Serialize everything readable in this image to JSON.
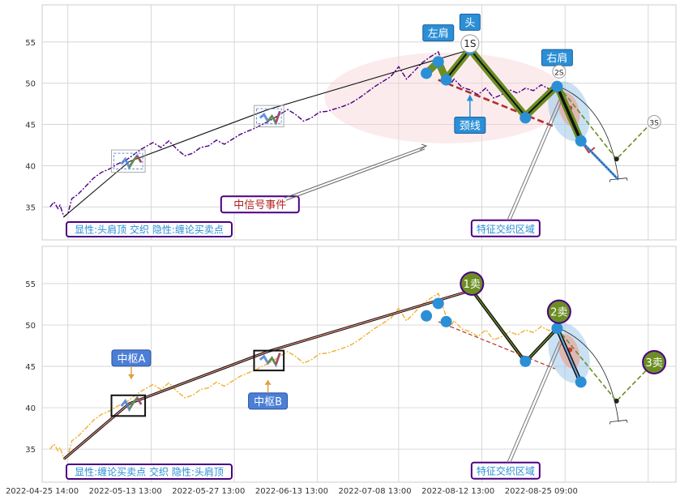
{
  "chart_data": [
    {
      "type": "line",
      "panel": "top",
      "ylim": [
        31,
        59.5
      ],
      "yticks": [
        35,
        40,
        45,
        50,
        55
      ],
      "grid": true,
      "caption": "显性:头肩顶 交织 隐性:缠论买卖点",
      "series": [
        {
          "kind": "price",
          "color": "#4b0082",
          "style": "dashdot",
          "points": [
            [
              0,
              35
            ],
            [
              2,
              35.6
            ],
            [
              4,
              34.8
            ],
            [
              5,
              35.2
            ],
            [
              7,
              33.8
            ],
            [
              9,
              34.2
            ],
            [
              11,
              36
            ],
            [
              14,
              36.5
            ],
            [
              18,
              37.5
            ],
            [
              22,
              38.5
            ],
            [
              26,
              39.2
            ],
            [
              30,
              39.6
            ],
            [
              34,
              40.2
            ],
            [
              38,
              40.6
            ],
            [
              42,
              41.3
            ],
            [
              46,
              42
            ],
            [
              52,
              42.8
            ],
            [
              56,
              42.2
            ],
            [
              60,
              43
            ],
            [
              64,
              42
            ],
            [
              68,
              41.2
            ],
            [
              72,
              41.5
            ],
            [
              76,
              42.2
            ],
            [
              80,
              42.4
            ],
            [
              84,
              43.1
            ],
            [
              88,
              42.6
            ],
            [
              92,
              43.2
            ],
            [
              96,
              43.8
            ],
            [
              100,
              44.2
            ],
            [
              104,
              44.6
            ],
            [
              108,
              45.1
            ],
            [
              112,
              45.6
            ],
            [
              116,
              46.2
            ],
            [
              120,
              46.8
            ],
            [
              124,
              46.2
            ],
            [
              128,
              45.4
            ],
            [
              132,
              45.8
            ],
            [
              136,
              46.5
            ],
            [
              140,
              46.6
            ],
            [
              144,
              46.9
            ],
            [
              148,
              47.2
            ],
            [
              152,
              47.6
            ],
            [
              156,
              48.2
            ],
            [
              160,
              48.9
            ],
            [
              164,
              49.6
            ],
            [
              168,
              50.2
            ],
            [
              172,
              50.8
            ],
            [
              176,
              52
            ],
            [
              180,
              50.5
            ],
            [
              184,
              51.5
            ],
            [
              188,
              52.5
            ],
            [
              192,
              53.2
            ],
            [
              196,
              53.8
            ],
            [
              198,
              52.5
            ],
            [
              200,
              51
            ],
            [
              202,
              49.8
            ],
            [
              204,
              50.5
            ],
            [
              208,
              49.5
            ],
            [
              212,
              49.2
            ],
            [
              216,
              48.6
            ],
            [
              220,
              49.4
            ],
            [
              224,
              48.2
            ],
            [
              228,
              48.6
            ],
            [
              232,
              49.2
            ],
            [
              236,
              48.8
            ],
            [
              240,
              49.4
            ],
            [
              244,
              49.1
            ],
            [
              248,
              49.8
            ],
            [
              252,
              49.3
            ],
            [
              256,
              49.8
            ]
          ]
        },
        {
          "kind": "bi",
          "color": "#6b8e23",
          "points": [
            [
              190,
              51.2
            ],
            [
              196,
              52.6
            ],
            [
              200,
              50.5
            ],
            [
              212,
              54.1
            ],
            [
              240,
              46
            ],
            [
              256,
              49.7
            ],
            [
              268,
              43
            ],
            [
              275,
              41.8
            ]
          ]
        },
        {
          "kind": "trend",
          "color": "#111111",
          "points": [
            [
              7,
              33.8
            ],
            [
              40,
              40.5
            ],
            [
              110,
              46.8
            ],
            [
              214,
              54.2
            ],
            [
              248,
              46.2
            ],
            [
              257,
              49.6
            ]
          ]
        },
        {
          "kind": "neckline",
          "color": "#b03030",
          "points": [
            [
              196,
              50.4
            ],
            [
              255,
              44.7
            ]
          ]
        },
        {
          "kind": "forecast",
          "color": "#6b8e23",
          "points": [
            [
              257,
              49.6
            ],
            [
              286,
              40.8
            ],
            [
              304,
              45.3
            ]
          ]
        },
        {
          "kind": "forecast-down",
          "color": "#4a90d9",
          "points": [
            [
              268,
              43
            ],
            [
              287,
              38.3
            ]
          ]
        }
      ],
      "markers": [
        {
          "x": 190,
          "y": 51.2
        },
        {
          "x": 196,
          "y": 52.6
        },
        {
          "x": 200,
          "y": 50.4
        },
        {
          "x": 212,
          "y": 54.1
        },
        {
          "x": 240,
          "y": 45.8
        },
        {
          "x": 256,
          "y": 49.6
        },
        {
          "x": 268,
          "y": 43
        }
      ],
      "labels": [
        {
          "key": "left_shoulder",
          "text": "左肩",
          "x": 196,
          "y": 56.1
        },
        {
          "key": "head",
          "text": "头",
          "x": 212,
          "y": 57.4
        },
        {
          "key": "right_shoulder",
          "text": "右肩",
          "x": 256,
          "y": 53.1
        },
        {
          "key": "neckline",
          "text": "颈线",
          "x": 212,
          "y": 44.9
        },
        {
          "key": "signal_event",
          "text": "中信号事件",
          "x": 106,
          "y": 35.3
        },
        {
          "key": "feature_zone",
          "text": "特征交织区域",
          "x": 230,
          "y": 32.4
        }
      ],
      "point_tags": [
        {
          "text": "1S",
          "x": 212,
          "y": 54.8
        },
        {
          "text": "2S",
          "x": 257,
          "y": 51.4
        },
        {
          "text": "3S",
          "x": 305,
          "y": 45.3
        }
      ]
    },
    {
      "type": "line",
      "panel": "bottom",
      "ylim": [
        31,
        59.5
      ],
      "yticks": [
        35,
        40,
        45,
        50,
        55
      ],
      "grid": true,
      "caption": "显性:缠论买卖点 交织 隐性:头肩顶",
      "series": [
        {
          "kind": "price",
          "color": "#f0b030",
          "style": "dashdot",
          "points": [
            [
              0,
              35
            ],
            [
              2,
              35.6
            ],
            [
              4,
              34.8
            ],
            [
              5,
              35.2
            ],
            [
              7,
              33.8
            ],
            [
              9,
              34.2
            ],
            [
              11,
              36
            ],
            [
              14,
              36.5
            ],
            [
              18,
              37.5
            ],
            [
              22,
              38.5
            ],
            [
              26,
              39.2
            ],
            [
              30,
              39.6
            ],
            [
              34,
              40.2
            ],
            [
              38,
              40.6
            ],
            [
              42,
              41.3
            ],
            [
              46,
              42
            ],
            [
              52,
              42.8
            ],
            [
              56,
              42.2
            ],
            [
              60,
              43
            ],
            [
              64,
              42
            ],
            [
              68,
              41.2
            ],
            [
              72,
              41.5
            ],
            [
              76,
              42.2
            ],
            [
              80,
              42.4
            ],
            [
              84,
              43.1
            ],
            [
              88,
              42.6
            ],
            [
              92,
              43.2
            ],
            [
              96,
              43.8
            ],
            [
              100,
              44.2
            ],
            [
              104,
              44.6
            ],
            [
              108,
              45.1
            ],
            [
              112,
              45.6
            ],
            [
              116,
              46.2
            ],
            [
              120,
              46.8
            ],
            [
              124,
              46.2
            ],
            [
              128,
              45.4
            ],
            [
              132,
              45.8
            ],
            [
              136,
              46.5
            ],
            [
              140,
              46.6
            ],
            [
              144,
              46.9
            ],
            [
              148,
              47.2
            ],
            [
              152,
              47.6
            ],
            [
              156,
              48.2
            ],
            [
              160,
              48.9
            ],
            [
              164,
              49.6
            ],
            [
              168,
              50.2
            ],
            [
              172,
              50.8
            ],
            [
              176,
              52
            ],
            [
              180,
              50.5
            ],
            [
              184,
              51.5
            ],
            [
              188,
              52.5
            ],
            [
              192,
              53.2
            ],
            [
              196,
              53.8
            ],
            [
              198,
              52.5
            ],
            [
              200,
              51
            ],
            [
              202,
              49.8
            ],
            [
              204,
              50.5
            ],
            [
              208,
              49.5
            ],
            [
              212,
              49.2
            ],
            [
              216,
              48.6
            ],
            [
              220,
              49.4
            ],
            [
              224,
              48.2
            ],
            [
              228,
              48.6
            ],
            [
              232,
              49.2
            ],
            [
              236,
              48.8
            ],
            [
              240,
              49.4
            ],
            [
              244,
              49.1
            ],
            [
              248,
              49.8
            ],
            [
              252,
              49.3
            ],
            [
              256,
              49.8
            ]
          ]
        },
        {
          "kind": "trend",
          "color": "#111111",
          "points": [
            [
              7,
              33.8
            ],
            [
              40,
              40.5
            ],
            [
              110,
              46.8
            ],
            [
              213,
              54.2
            ],
            [
              240,
              45.5
            ],
            [
              256,
              49.6
            ]
          ]
        },
        {
          "kind": "neckline",
          "color": "#b03030",
          "points": [
            [
              196,
              50.4
            ],
            [
              255,
              44.7
            ]
          ]
        },
        {
          "kind": "bi",
          "color": "#111111",
          "points": [
            [
              256,
              49.6
            ],
            [
              268,
              43
            ]
          ]
        },
        {
          "kind": "forecast",
          "color": "#6b8e23",
          "points": [
            [
              256,
              49.6
            ],
            [
              286,
              40.8
            ],
            [
              305,
              45.5
            ]
          ]
        }
      ],
      "markers": [
        {
          "x": 190,
          "y": 51.1
        },
        {
          "x": 196,
          "y": 52.6
        },
        {
          "x": 200,
          "y": 50.4
        },
        {
          "x": 240,
          "y": 45.6
        },
        {
          "x": 256,
          "y": 49.6
        },
        {
          "x": 268,
          "y": 43.1
        }
      ],
      "sell_points": [
        {
          "text": "1卖",
          "x": 213,
          "y": 55
        },
        {
          "text": "2卖",
          "x": 257,
          "y": 51.6
        },
        {
          "text": "3卖",
          "x": 305,
          "y": 45.5
        }
      ],
      "labels": [
        {
          "key": "zs_a",
          "text": "中枢A",
          "x": 41,
          "y": 46
        },
        {
          "key": "zs_b",
          "text": "中枢B",
          "x": 110,
          "y": 40.8
        },
        {
          "key": "feature_zone",
          "text": "特征交织区域",
          "x": 230,
          "y": 32.4
        }
      ]
    }
  ],
  "x_axis": {
    "range": [
      -4,
      316
    ],
    "tick_labels": [
      {
        "x": -4,
        "text": "2022-04-25 14:00"
      },
      {
        "x": 38,
        "text": "2022-05-13 13:00"
      },
      {
        "x": 80,
        "text": "2022-05-27 13:00"
      },
      {
        "x": 122,
        "text": "2022-06-13 13:00"
      },
      {
        "x": 164,
        "text": "2022-07-08 13:00"
      },
      {
        "x": 206,
        "text": "2022-08-12 13:00"
      },
      {
        "x": 248,
        "text": "2022-08-25 09:00"
      }
    ],
    "grid_x": [
      9,
      51,
      93,
      135,
      176,
      218,
      260,
      302
    ]
  },
  "colors": {
    "grid": "#cfcfcf",
    "label_fill": "#2b8fd6",
    "label_text": "#ffffff",
    "box_border": "#4b0082",
    "event_text": "#b22222",
    "caption_text": "#2b8fd6",
    "zs_fill": "#4b7fd6",
    "sell_fill": "#6b8e23",
    "marker": "#2b8fd6"
  }
}
